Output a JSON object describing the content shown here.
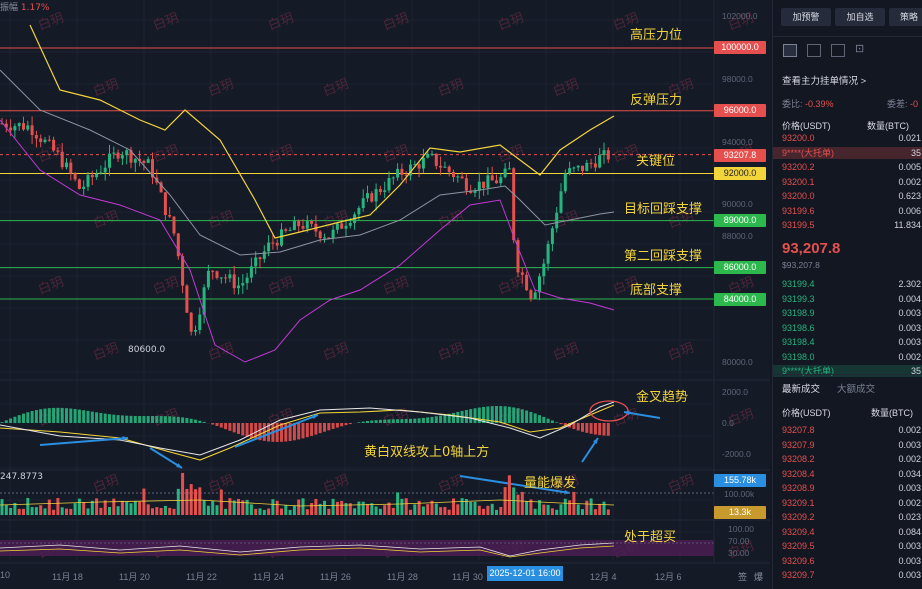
{
  "chart": {
    "top_indicator_label": "振幅",
    "top_indicator_value": "1.17%",
    "low_label": "80600.0",
    "volume_readout": "247.8773",
    "crosshair_time": "2025-12-01 16:00",
    "price_axis": [
      "102000.0",
      "98000.0",
      "94000.0",
      "90000.0",
      "88000.0",
      "80000.0"
    ],
    "price_tags": {
      "p100000": "100000.0",
      "p96000": "96000.0",
      "p93207": "93207.8",
      "p92000": "92000.0",
      "p89000": "89000.0",
      "p86000": "86000.0",
      "p84000": "84000.0"
    },
    "macd_axis": [
      "2000.0",
      "0.0",
      "-2000.0"
    ],
    "vol_tags": {
      "big": "155.78k",
      "small": "13.3k",
      "axis": "100.00k"
    },
    "rsi_axis": [
      "100.00",
      "70.00",
      "30.00"
    ],
    "x_labels": [
      "10",
      "11月 18",
      "11月 20",
      "11月 22",
      "11月 24",
      "11月 26",
      "11月 28",
      "11月 30",
      "12月 4",
      "12月 6"
    ],
    "bottom_icons": [
      "签",
      "爆"
    ],
    "annotations": {
      "resistance_high": "高压力位",
      "rebound_resistance": "反弹压力",
      "key_level": "关键位",
      "target_pullback": "目标回踩支撑",
      "second_pullback": "第二回踩支撑",
      "bottom_support": "底部支撑",
      "golden_cross": "金叉趋势",
      "macd_note": "黄白双线攻上0轴上方",
      "volume_note": "量能爆发",
      "rsi_note": "处于超买"
    },
    "watermark": "白玥",
    "colors": {
      "red": "#e5504e",
      "green": "#25b57e",
      "yellow": "#f2d43b",
      "magenta": "#c13ad3"
    }
  },
  "panel": {
    "buttons": [
      "加预警",
      "加自选",
      "策略"
    ],
    "section_title": "查看主力挂单情况",
    "section_arrow": ">",
    "stat_left_label": "委比",
    "stat_left_value": "-0.39%",
    "stat_right_label": "委差",
    "stat_right_value": "-0",
    "col_price": "价格(USDT)",
    "col_qty": "数量(BTC)",
    "asks": [
      {
        "p": "93200.0",
        "q": "0.021"
      },
      {
        "p": "9****(大托单)",
        "q": "35"
      },
      {
        "p": "93200.2",
        "q": "0.005"
      },
      {
        "p": "93200.1",
        "q": "0.002"
      },
      {
        "p": "93200.0",
        "q": "0.623"
      },
      {
        "p": "93199.6",
        "q": "0.006"
      },
      {
        "p": "93199.5",
        "q": "11.834"
      }
    ],
    "last_price": "93,207.8",
    "last_price_sub": "$93,207.8",
    "bids": [
      {
        "p": "93199.4",
        "q": "2.302"
      },
      {
        "p": "93199.3",
        "q": "0.004"
      },
      {
        "p": "93198.9",
        "q": "0.003"
      },
      {
        "p": "93198.6",
        "q": "0.003"
      },
      {
        "p": "93198.4",
        "q": "0.003"
      },
      {
        "p": "93198.0",
        "q": "0.002"
      },
      {
        "p": "9****(大托单)",
        "q": "35"
      }
    ],
    "trade_tabs": [
      "最新成交",
      "大额成交"
    ],
    "trades": [
      {
        "p": "93207.8",
        "q": "0.002"
      },
      {
        "p": "93207.9",
        "q": "0.003"
      },
      {
        "p": "93208.2",
        "q": "0.002"
      },
      {
        "p": "93208.4",
        "q": "0.034"
      },
      {
        "p": "93208.9",
        "q": "0.003"
      },
      {
        "p": "93209.1",
        "q": "0.002"
      },
      {
        "p": "93209.2",
        "q": "0.023"
      },
      {
        "p": "93209.4",
        "q": "0.084"
      },
      {
        "p": "93209.5",
        "q": "0.003"
      },
      {
        "p": "93209.6",
        "q": "0.003"
      },
      {
        "p": "93209.7",
        "q": "0.003"
      }
    ]
  }
}
